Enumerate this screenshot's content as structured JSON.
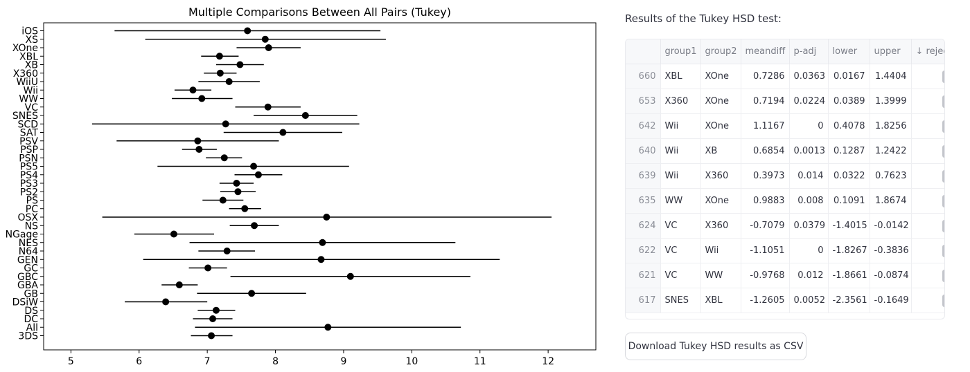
{
  "results": {
    "title": "Results of the Tukey HSD test:",
    "columns": [
      "",
      "group1",
      "group2",
      "meandiff",
      "p-adj",
      "lower",
      "upper",
      "↓ reject"
    ],
    "rows": [
      {
        "index": "660",
        "group1": "XBL",
        "group2": "XOne",
        "meandiff": "0.7286",
        "p_adj": "0.0363",
        "lower": "0.0167",
        "upper": "1.4404",
        "reject": true
      },
      {
        "index": "653",
        "group1": "X360",
        "group2": "XOne",
        "meandiff": "0.7194",
        "p_adj": "0.0224",
        "lower": "0.0389",
        "upper": "1.3999",
        "reject": true
      },
      {
        "index": "642",
        "group1": "Wii",
        "group2": "XOne",
        "meandiff": "1.1167",
        "p_adj": "0",
        "lower": "0.4078",
        "upper": "1.8256",
        "reject": true
      },
      {
        "index": "640",
        "group1": "Wii",
        "group2": "XB",
        "meandiff": "0.6854",
        "p_adj": "0.0013",
        "lower": "0.1287",
        "upper": "1.2422",
        "reject": true
      },
      {
        "index": "639",
        "group1": "Wii",
        "group2": "X360",
        "meandiff": "0.3973",
        "p_adj": "0.014",
        "lower": "0.0322",
        "upper": "0.7623",
        "reject": true
      },
      {
        "index": "635",
        "group1": "WW",
        "group2": "XOne",
        "meandiff": "0.9883",
        "p_adj": "0.008",
        "lower": "0.1091",
        "upper": "1.8674",
        "reject": true
      },
      {
        "index": "624",
        "group1": "VC",
        "group2": "X360",
        "meandiff": "-0.7079",
        "p_adj": "0.0379",
        "lower": "-1.4015",
        "upper": "-0.0142",
        "reject": true
      },
      {
        "index": "622",
        "group1": "VC",
        "group2": "Wii",
        "meandiff": "-1.1051",
        "p_adj": "0",
        "lower": "-1.8267",
        "upper": "-0.3836",
        "reject": true
      },
      {
        "index": "621",
        "group1": "VC",
        "group2": "WW",
        "meandiff": "-0.9768",
        "p_adj": "0.012",
        "lower": "-1.8661",
        "upper": "-0.0874",
        "reject": true
      },
      {
        "index": "617",
        "group1": "SNES",
        "group2": "XBL",
        "meandiff": "-1.2605",
        "p_adj": "0.0052",
        "lower": "-2.3561",
        "upper": "-0.1649",
        "reject": true
      }
    ],
    "check_glyph": "✓"
  },
  "download": {
    "label": "Download Tukey HSD results as CSV"
  },
  "chart_data": {
    "type": "scatter",
    "title": "Multiple Comparisons Between All Pairs (Tukey)",
    "xlim": [
      4.6,
      12.7
    ],
    "xticks": [
      "5",
      "6",
      "7",
      "8",
      "9",
      "10",
      "11",
      "12"
    ],
    "grid": false,
    "categories": [
      "iOS",
      "XS",
      "XOne",
      "XBL",
      "XB",
      "X360",
      "WiiU",
      "Wii",
      "WW",
      "VC",
      "SNES",
      "SCD",
      "SAT",
      "PSV",
      "PSP",
      "PSN",
      "PS5",
      "PS4",
      "PS3",
      "PS2",
      "PS",
      "PC",
      "OSX",
      "NS",
      "NGage",
      "NES",
      "N64",
      "GEN",
      "GC",
      "GBC",
      "GBA",
      "GB",
      "DSiW",
      "DS",
      "DC",
      "All",
      "3DS"
    ],
    "means": [
      7.59,
      7.85,
      7.9,
      7.18,
      7.48,
      7.19,
      7.32,
      6.79,
      6.92,
      7.89,
      8.44,
      7.27,
      8.11,
      6.86,
      6.88,
      7.25,
      7.68,
      7.75,
      7.43,
      7.45,
      7.23,
      7.55,
      8.75,
      7.69,
      6.51,
      8.69,
      7.29,
      8.67,
      7.01,
      9.1,
      6.59,
      7.65,
      6.39,
      7.13,
      7.08,
      8.77,
      7.06
    ],
    "lower": [
      5.64,
      6.09,
      7.43,
      6.91,
      7.13,
      6.95,
      6.87,
      6.52,
      6.48,
      7.41,
      7.68,
      5.31,
      7.24,
      5.67,
      6.63,
      6.98,
      6.27,
      7.4,
      7.18,
      7.19,
      6.93,
      7.32,
      5.46,
      7.33,
      5.93,
      6.74,
      6.87,
      6.06,
      6.73,
      7.34,
      6.33,
      6.85,
      5.79,
      6.86,
      6.79,
      6.82,
      6.76
    ],
    "upper": [
      9.54,
      9.62,
      8.37,
      7.46,
      7.83,
      7.43,
      7.77,
      7.06,
      7.37,
      8.37,
      9.2,
      9.23,
      8.98,
      8.05,
      7.14,
      7.51,
      9.08,
      8.1,
      7.68,
      7.71,
      7.53,
      7.79,
      12.05,
      8.05,
      7.1,
      10.64,
      7.7,
      11.29,
      7.29,
      10.86,
      6.86,
      8.45,
      7.0,
      7.41,
      7.37,
      10.72,
      7.37
    ],
    "point_color": "#000000",
    "line_color": "#000000"
  }
}
